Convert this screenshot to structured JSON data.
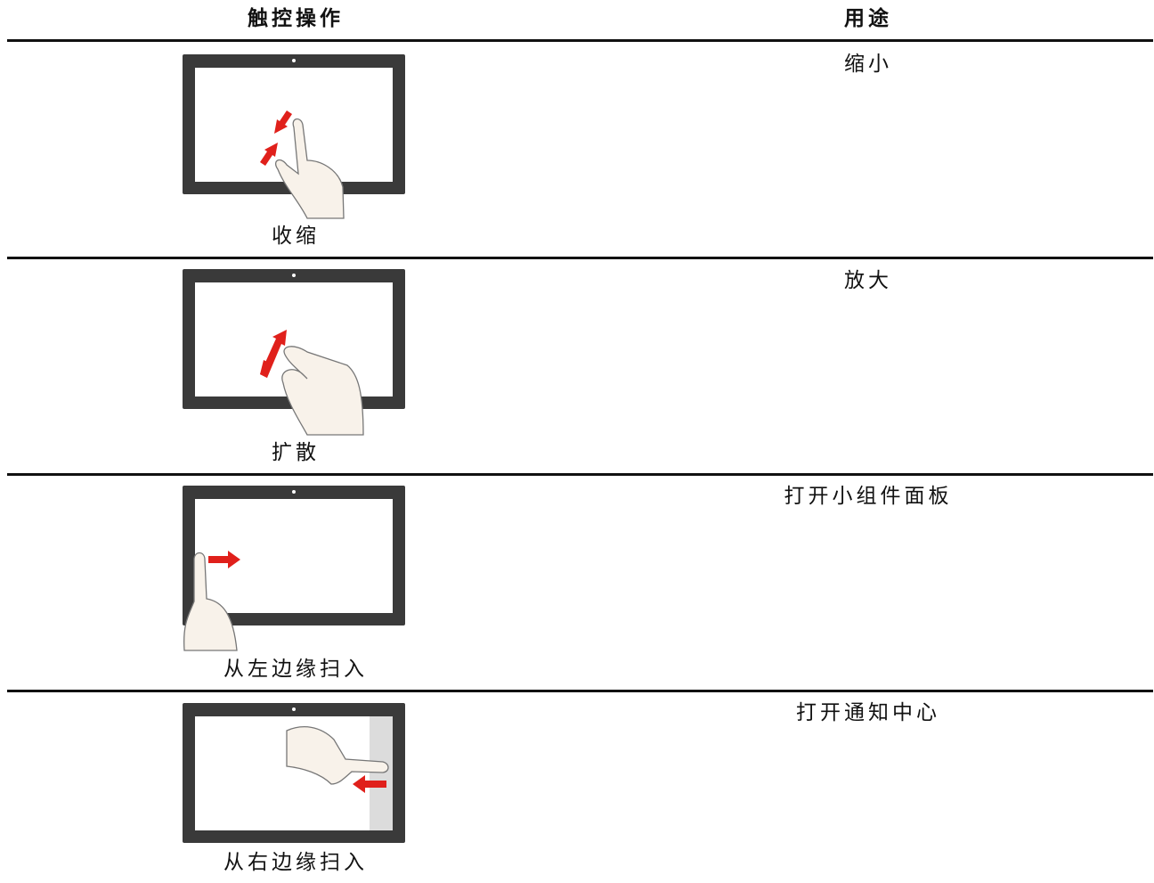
{
  "table": {
    "headers": [
      "触控操作",
      "用途"
    ],
    "rows": [
      [
        "收缩",
        "缩小"
      ],
      [
        "扩散",
        "放大"
      ],
      [
        "从左边缘扫入",
        "打开小组件面板"
      ],
      [
        "从右边缘扫入",
        "打开通知中心"
      ]
    ]
  }
}
